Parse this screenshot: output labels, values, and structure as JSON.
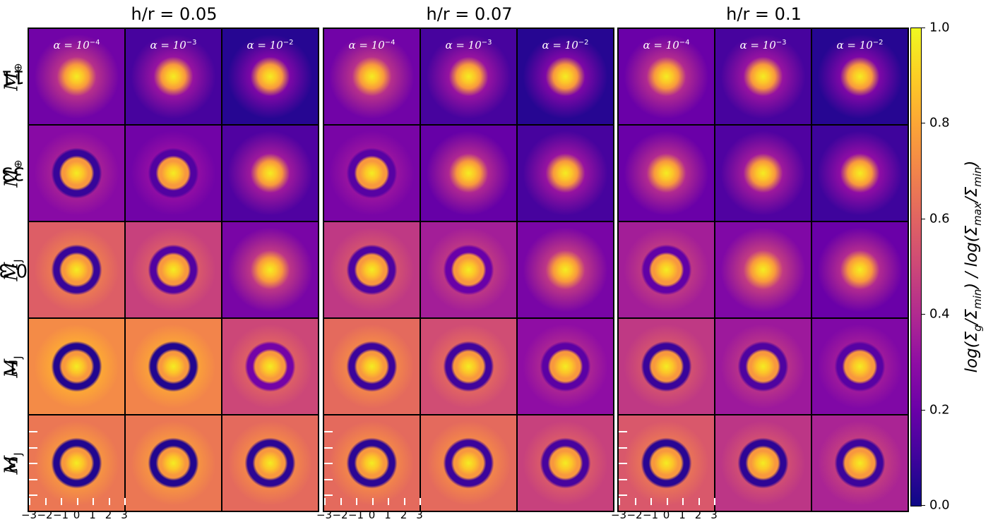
{
  "chart_data": {
    "type": "heatmap",
    "panel_titles": [
      "h/r = 0.05",
      "h/r = 0.07",
      "h/r = 0.1"
    ],
    "h_over_r": [
      0.05,
      0.07,
      0.1
    ],
    "column_labels": [
      {
        "base": "α = 10",
        "exp": "−4"
      },
      {
        "base": "α = 10",
        "exp": "−3"
      },
      {
        "base": "α = 10",
        "exp": "−2"
      }
    ],
    "alpha": [
      0.0001,
      0.001,
      0.01
    ],
    "row_labels": [
      {
        "value": "11 ",
        "unit": "M",
        "sub": "⊕"
      },
      {
        "value": "33 ",
        "unit": "M",
        "sub": "⊕"
      },
      {
        "value": "0.3 ",
        "unit": "M",
        "sub": "J"
      },
      {
        "value": "1 ",
        "unit": "M",
        "sub": "J"
      },
      {
        "value": "3 ",
        "unit": "M",
        "sub": "J"
      }
    ],
    "x_ticks": [
      "−3",
      "−2",
      "−1",
      "0",
      "1",
      "2",
      "3"
    ],
    "x_range": [
      -3,
      3
    ],
    "colorbar": {
      "colormap": "plasma",
      "range": [
        0,
        1
      ],
      "ticks": [
        "0.0",
        "0.2",
        "0.4",
        "0.6",
        "0.8",
        "1.0"
      ],
      "label_parts": {
        "a": "log(Σ",
        "b": "g",
        "c": "/Σ",
        "d": "min",
        "e": ") / log(Σ",
        "f": "max",
        "g": "/Σ",
        "h": "min",
        "i": ")"
      }
    },
    "cell_levels": [
      [
        [
          0.22,
          0.12,
          0.05
        ],
        [
          0.22,
          0.12,
          0.05
        ],
        [
          0.2,
          0.12,
          0.05
        ]
      ],
      [
        [
          0.28,
          0.22,
          0.14
        ],
        [
          0.24,
          0.19,
          0.12
        ],
        [
          0.2,
          0.14,
          0.1
        ]
      ],
      [
        [
          0.58,
          0.48,
          0.24
        ],
        [
          0.45,
          0.36,
          0.24
        ],
        [
          0.36,
          0.26,
          0.2
        ]
      ],
      [
        [
          0.72,
          0.7,
          0.5
        ],
        [
          0.62,
          0.52,
          0.3
        ],
        [
          0.45,
          0.34,
          0.26
        ]
      ],
      [
        [
          0.66,
          0.66,
          0.62
        ],
        [
          0.62,
          0.62,
          0.48
        ],
        [
          0.56,
          0.44,
          0.38
        ]
      ]
    ],
    "gap_depth": [
      [
        [
          0.2,
          0.05,
          0.0
        ],
        [
          0.1,
          0.03,
          0.0
        ],
        [
          0.0,
          0.0,
          0.0
        ]
      ],
      [
        [
          0.7,
          0.35,
          0.1
        ],
        [
          0.35,
          0.2,
          0.05
        ],
        [
          0.15,
          0.05,
          0.0
        ]
      ],
      [
        [
          0.85,
          0.7,
          0.3
        ],
        [
          0.7,
          0.45,
          0.2
        ],
        [
          0.5,
          0.25,
          0.1
        ]
      ],
      [
        [
          0.95,
          0.95,
          0.55
        ],
        [
          0.85,
          0.8,
          0.45
        ],
        [
          0.8,
          0.6,
          0.4
        ]
      ],
      [
        [
          0.95,
          0.95,
          0.9
        ],
        [
          0.9,
          0.85,
          0.75
        ],
        [
          0.9,
          0.85,
          0.75
        ]
      ]
    ]
  }
}
